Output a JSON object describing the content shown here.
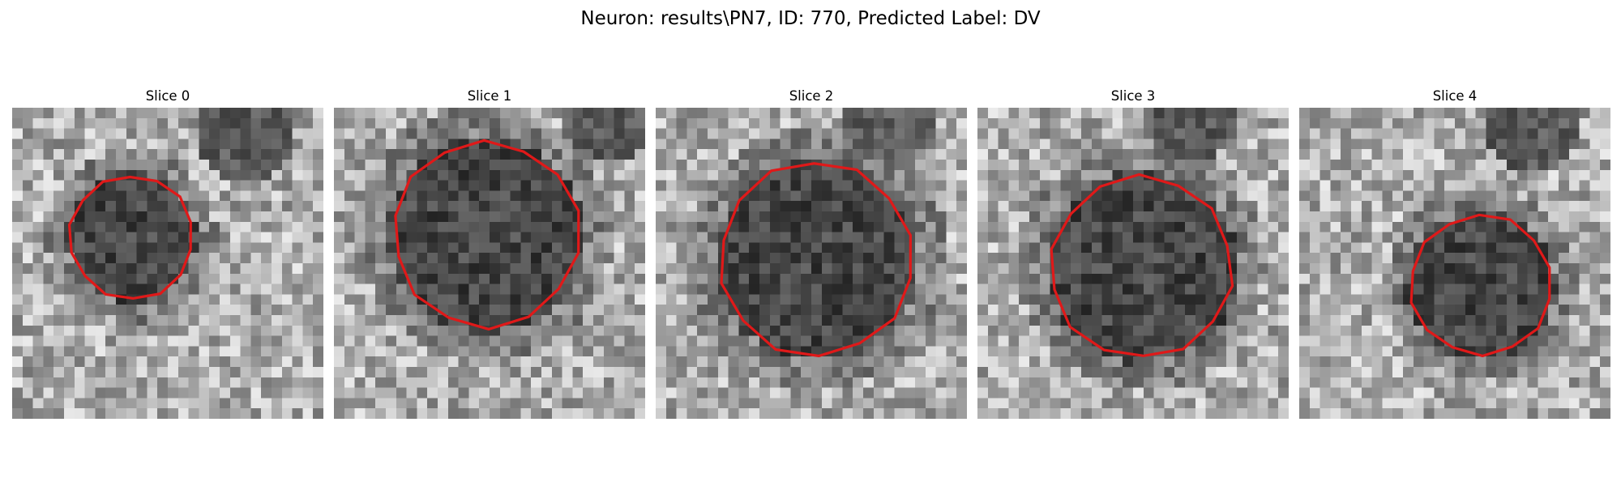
{
  "figure": {
    "suptitle": "Neuron: results\\PN7, ID: 770, Predicted Label: DV",
    "contour_color": "#e01919",
    "colormap": "gray"
  },
  "panels": [
    {
      "title": "Slice 0"
    },
    {
      "title": "Slice 1"
    },
    {
      "title": "Slice 2"
    },
    {
      "title": "Slice 3"
    },
    {
      "title": "Slice 4"
    }
  ]
}
